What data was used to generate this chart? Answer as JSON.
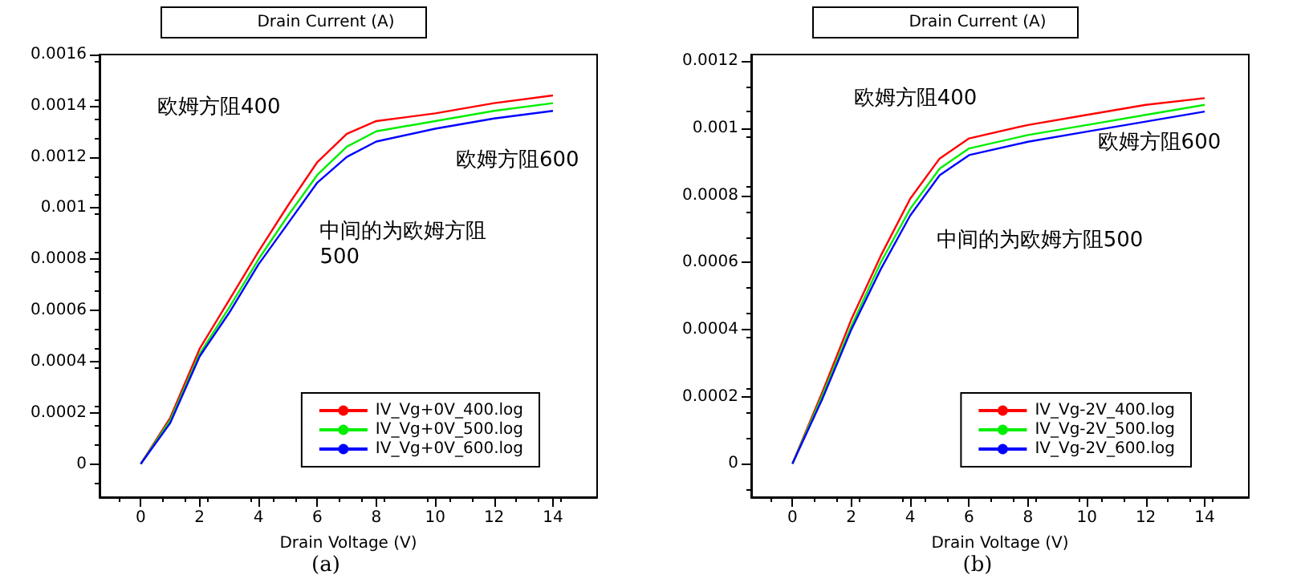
{
  "chart_data": [
    {
      "type": "line",
      "ylabel": "Drain Current (A)",
      "xlabel": "Drain Voltage (V)",
      "x": [
        0,
        1,
        2,
        3,
        4,
        5,
        6,
        7,
        8,
        10,
        12,
        14
      ],
      "xlim": [
        -1.4,
        15.5
      ],
      "xticks": [
        0,
        2,
        4,
        6,
        8,
        10,
        12,
        14
      ],
      "ylim": [
        -0.00013,
        0.0016
      ],
      "yticks": [
        0,
        0.0002,
        0.0004,
        0.0006,
        0.0008,
        0.001,
        0.0012,
        0.0014,
        0.0016
      ],
      "grid": false,
      "legend": "bottom right",
      "line_style": "solid",
      "series": [
        {
          "name": "IV_Vg+0V_400.log",
          "color": "#ff0000",
          "values": [
            0,
            0.00018,
            0.00045,
            0.00064,
            0.00083,
            0.00101,
            0.00118,
            0.00129,
            0.00134,
            0.00137,
            0.00141,
            0.00144
          ]
        },
        {
          "name": "IV_Vg+0V_500.log",
          "color": "#00ee00",
          "values": [
            0,
            0.00017,
            0.00043,
            0.00061,
            0.0008,
            0.00097,
            0.00113,
            0.00124,
            0.0013,
            0.00134,
            0.00138,
            0.00141
          ]
        },
        {
          "name": "IV_Vg+0V_600.log",
          "color": "#0000ff",
          "values": [
            0,
            0.00016,
            0.00042,
            0.00059,
            0.00078,
            0.00094,
            0.0011,
            0.0012,
            0.00126,
            0.00131,
            0.00135,
            0.00138
          ]
        }
      ],
      "annotations": [
        "欧姆方阻400",
        "欧姆方阻600",
        "中间的为欧姆方阻500",
        "(a)"
      ]
    },
    {
      "type": "line",
      "ylabel": "Drain Current (A)",
      "xlabel": "Drain Voltage (V)",
      "x": [
        0,
        1,
        2,
        3,
        4,
        5,
        6,
        8,
        10,
        12,
        14
      ],
      "xlim": [
        -1.4,
        15.5
      ],
      "xticks": [
        0,
        2,
        4,
        6,
        8,
        10,
        12,
        14
      ],
      "ylim": [
        -0.0001,
        0.00122
      ],
      "yticks": [
        0,
        0.0002,
        0.0004,
        0.0006,
        0.0008,
        0.001,
        0.0012
      ],
      "grid": false,
      "legend": "bottom right",
      "line_style": "solid",
      "series": [
        {
          "name": "IV_Vg-2V_400.log",
          "color": "#ff0000",
          "values": [
            0,
            0.00021,
            0.00043,
            0.00062,
            0.00079,
            0.00091,
            0.00097,
            0.00101,
            0.00104,
            0.00107,
            0.00109
          ]
        },
        {
          "name": "IV_Vg-2V_500.log",
          "color": "#00ee00",
          "values": [
            0,
            0.0002,
            0.00041,
            0.0006,
            0.00076,
            0.00088,
            0.00094,
            0.00098,
            0.00101,
            0.00104,
            0.00107
          ]
        },
        {
          "name": "IV_Vg-2V_600.log",
          "color": "#0000ff",
          "values": [
            0,
            0.00019,
            0.0004,
            0.00058,
            0.00074,
            0.00086,
            0.00092,
            0.00096,
            0.00099,
            0.00102,
            0.00105
          ]
        }
      ],
      "annotations": [
        "欧姆方阻400",
        "欧姆方阻600",
        "中间的为欧姆方阻500",
        "(b)"
      ]
    }
  ]
}
